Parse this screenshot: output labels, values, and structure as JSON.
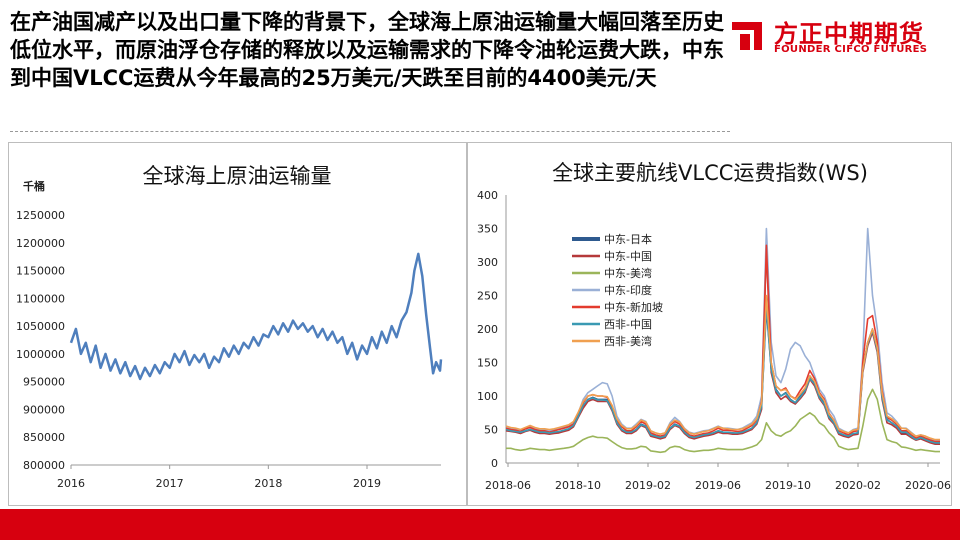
{
  "slide": {
    "headline": "在产油国减产以及出口量下降的背景下，全球海上原油运输量大幅回落至历史低位水平，而原油浮仓存储的释放以及运输需求的下降令油轮运费大跌，中东到中国VLCC运费从今年最高的25万美元/天跌至目前的4400美元/天"
  },
  "logo": {
    "name": "方正中期期货",
    "english": "FOUNDER CIFCO FUTURES",
    "color": "#d7000f"
  },
  "colors": {
    "accent": "#d7000f"
  },
  "chart_data": [
    {
      "type": "line",
      "title": "全球海上原油运输量",
      "ylabel": "千桶",
      "xlabel": "",
      "ylim": [
        800000,
        1250000
      ],
      "yticks": [
        "1250000",
        "1200000",
        "1150000",
        "1100000",
        "1050000",
        "1000000",
        "950000",
        "900000",
        "850000",
        "800000"
      ],
      "xticks": [
        "2016",
        "2017",
        "2018",
        "2019"
      ],
      "xrange": [
        2016.0,
        2019.75
      ],
      "grid": false,
      "series": [
        {
          "color": "#4f7fbd",
          "points": [
            [
              2016.0,
              1020000
            ],
            [
              2016.05,
              1045000
            ],
            [
              2016.1,
              1000000
            ],
            [
              2016.15,
              1020000
            ],
            [
              2016.2,
              985000
            ],
            [
              2016.25,
              1015000
            ],
            [
              2016.3,
              975000
            ],
            [
              2016.35,
              1000000
            ],
            [
              2016.4,
              970000
            ],
            [
              2016.45,
              990000
            ],
            [
              2016.5,
              965000
            ],
            [
              2016.55,
              985000
            ],
            [
              2016.6,
              960000
            ],
            [
              2016.65,
              978000
            ],
            [
              2016.7,
              955000
            ],
            [
              2016.75,
              975000
            ],
            [
              2016.8,
              960000
            ],
            [
              2016.85,
              980000
            ],
            [
              2016.9,
              965000
            ],
            [
              2016.95,
              985000
            ],
            [
              2017.0,
              975000
            ],
            [
              2017.05,
              1000000
            ],
            [
              2017.1,
              985000
            ],
            [
              2017.15,
              1005000
            ],
            [
              2017.2,
              980000
            ],
            [
              2017.25,
              998000
            ],
            [
              2017.3,
              985000
            ],
            [
              2017.35,
              1000000
            ],
            [
              2017.4,
              975000
            ],
            [
              2017.45,
              995000
            ],
            [
              2017.5,
              985000
            ],
            [
              2017.55,
              1010000
            ],
            [
              2017.6,
              995000
            ],
            [
              2017.65,
              1015000
            ],
            [
              2017.7,
              1000000
            ],
            [
              2017.75,
              1020000
            ],
            [
              2017.8,
              1010000
            ],
            [
              2017.85,
              1030000
            ],
            [
              2017.9,
              1015000
            ],
            [
              2017.95,
              1035000
            ],
            [
              2018.0,
              1030000
            ],
            [
              2018.05,
              1050000
            ],
            [
              2018.1,
              1035000
            ],
            [
              2018.15,
              1055000
            ],
            [
              2018.2,
              1040000
            ],
            [
              2018.25,
              1060000
            ],
            [
              2018.3,
              1045000
            ],
            [
              2018.35,
              1055000
            ],
            [
              2018.4,
              1040000
            ],
            [
              2018.45,
              1050000
            ],
            [
              2018.5,
              1030000
            ],
            [
              2018.55,
              1045000
            ],
            [
              2018.6,
              1025000
            ],
            [
              2018.65,
              1040000
            ],
            [
              2018.7,
              1020000
            ],
            [
              2018.75,
              1030000
            ],
            [
              2018.8,
              1000000
            ],
            [
              2018.85,
              1020000
            ],
            [
              2018.9,
              990000
            ],
            [
              2018.95,
              1015000
            ],
            [
              2019.0,
              1000000
            ],
            [
              2019.05,
              1030000
            ],
            [
              2019.1,
              1010000
            ],
            [
              2019.15,
              1040000
            ],
            [
              2019.2,
              1020000
            ],
            [
              2019.25,
              1050000
            ],
            [
              2019.3,
              1030000
            ],
            [
              2019.35,
              1060000
            ],
            [
              2019.4,
              1075000
            ],
            [
              2019.45,
              1110000
            ],
            [
              2019.48,
              1150000
            ],
            [
              2019.52,
              1180000
            ],
            [
              2019.56,
              1140000
            ],
            [
              2019.6,
              1070000
            ],
            [
              2019.64,
              1010000
            ],
            [
              2019.67,
              965000
            ],
            [
              2019.7,
              985000
            ],
            [
              2019.74,
              970000
            ],
            [
              2019.75,
              990000
            ]
          ]
        }
      ]
    },
    {
      "type": "line",
      "title": "全球主要航线VLCC运费指数(WS)",
      "ylabel": "",
      "xlabel": "",
      "ylim": [
        0,
        400
      ],
      "yticks": [
        "400",
        "350",
        "300",
        "250",
        "200",
        "150",
        "100",
        "50",
        "0"
      ],
      "xticks": [
        "2018-06",
        "2018-10",
        "2019-02",
        "2019-06",
        "2019-10",
        "2020-02",
        "2020-06"
      ],
      "grid": false,
      "legend": "top-left",
      "series": [
        {
          "name": "中东-日本",
          "color": "#2e5a8f",
          "values": [
            50,
            48,
            47,
            45,
            48,
            50,
            47,
            45,
            45,
            44,
            45,
            46,
            48,
            50,
            55,
            70,
            85,
            95,
            98,
            95,
            95,
            95,
            80,
            60,
            50,
            45,
            45,
            50,
            58,
            55,
            42,
            40,
            38,
            40,
            52,
            58,
            55,
            45,
            40,
            38,
            40,
            42,
            43,
            45,
            48,
            46,
            45,
            45,
            44,
            45,
            48,
            52,
            60,
            85,
            230,
            140,
            110,
            100,
            105,
            95,
            90,
            100,
            110,
            130,
            120,
            100,
            90,
            70,
            60,
            45,
            42,
            40,
            44,
            45,
            140,
            180,
            200,
            170,
            100,
            65,
            60,
            55,
            45,
            45,
            40,
            35,
            38,
            35,
            32,
            30,
            30
          ]
        },
        {
          "name": "中东-中国",
          "color": "#b5393a",
          "values": [
            48,
            47,
            46,
            44,
            47,
            49,
            46,
            44,
            44,
            43,
            44,
            45,
            47,
            49,
            54,
            68,
            82,
            92,
            95,
            92,
            92,
            92,
            78,
            58,
            48,
            44,
            44,
            48,
            56,
            53,
            40,
            38,
            36,
            38,
            50,
            56,
            53,
            44,
            38,
            36,
            38,
            40,
            41,
            43,
            46,
            44,
            44,
            43,
            43,
            44,
            47,
            50,
            58,
            80,
            320,
            135,
            105,
            95,
            100,
            92,
            88,
            96,
            105,
            125,
            115,
            96,
            86,
            66,
            58,
            43,
            40,
            38,
            42,
            43,
            135,
            175,
            195,
            165,
            95,
            60,
            57,
            52,
            43,
            43,
            38,
            34,
            36,
            33,
            30,
            28,
            28
          ]
        },
        {
          "name": "中东-美湾",
          "color": "#9bb55a",
          "values": [
            22,
            22,
            20,
            19,
            20,
            22,
            21,
            20,
            20,
            19,
            20,
            21,
            22,
            23,
            25,
            30,
            35,
            38,
            40,
            38,
            38,
            37,
            32,
            27,
            23,
            21,
            21,
            22,
            25,
            24,
            18,
            17,
            16,
            17,
            23,
            25,
            24,
            20,
            18,
            17,
            18,
            19,
            19,
            20,
            22,
            21,
            20,
            20,
            20,
            20,
            22,
            24,
            27,
            35,
            60,
            48,
            42,
            40,
            45,
            48,
            55,
            65,
            70,
            75,
            70,
            60,
            55,
            45,
            38,
            25,
            22,
            20,
            21,
            22,
            55,
            95,
            110,
            95,
            60,
            35,
            32,
            30,
            24,
            23,
            21,
            19,
            20,
            19,
            18,
            17,
            17
          ]
        },
        {
          "name": "中东-印度",
          "color": "#9ab0d6",
          "values": [
            55,
            52,
            50,
            48,
            52,
            55,
            52,
            50,
            50,
            48,
            50,
            52,
            54,
            56,
            60,
            75,
            95,
            105,
            110,
            115,
            120,
            118,
            100,
            70,
            58,
            52,
            52,
            58,
            65,
            62,
            48,
            45,
            43,
            45,
            60,
            68,
            62,
            52,
            46,
            44,
            46,
            48,
            49,
            52,
            55,
            52,
            52,
            51,
            50,
            52,
            56,
            60,
            70,
            100,
            350,
            180,
            130,
            120,
            140,
            170,
            180,
            175,
            160,
            150,
            130,
            110,
            100,
            80,
            70,
            52,
            48,
            45,
            50,
            52,
            160,
            350,
            250,
            200,
            120,
            75,
            70,
            62,
            52,
            52,
            46,
            40,
            42,
            40,
            36,
            34,
            34
          ]
        },
        {
          "name": "中东-新加坡",
          "color": "#e33b2e",
          "values": [
            52,
            50,
            49,
            47,
            51,
            53,
            50,
            48,
            48,
            46,
            48,
            50,
            52,
            54,
            58,
            72,
            90,
            100,
            102,
            100,
            100,
            98,
            85,
            64,
            54,
            48,
            48,
            54,
            62,
            58,
            45,
            42,
            40,
            42,
            56,
            62,
            58,
            48,
            42,
            40,
            42,
            44,
            45,
            48,
            52,
            49,
            49,
            48,
            47,
            48,
            52,
            56,
            64,
            92,
            325,
            150,
            115,
            108,
            112,
            100,
            96,
            108,
            118,
            138,
            126,
            105,
            95,
            74,
            64,
            48,
            45,
            42,
            47,
            48,
            150,
            215,
            220,
            180,
            108,
            68,
            64,
            58,
            48,
            48,
            42,
            37,
            40,
            37,
            34,
            32,
            32
          ]
        },
        {
          "name": "西非-中国",
          "color": "#3a9ab3",
          "values": [
            50,
            48,
            47,
            46,
            48,
            50,
            48,
            46,
            46,
            45,
            46,
            47,
            49,
            51,
            56,
            70,
            86,
            95,
            97,
            94,
            94,
            93,
            80,
            60,
            50,
            46,
            46,
            50,
            57,
            55,
            42,
            40,
            38,
            40,
            52,
            57,
            55,
            46,
            40,
            38,
            40,
            42,
            43,
            45,
            48,
            46,
            46,
            45,
            45,
            46,
            49,
            52,
            60,
            84,
            235,
            140,
            108,
            100,
            104,
            94,
            90,
            98,
            108,
            126,
            118,
            98,
            88,
            68,
            60,
            45,
            42,
            40,
            44,
            45,
            138,
            178,
            198,
            168,
            98,
            64,
            60,
            55,
            46,
            46,
            40,
            35,
            38,
            35,
            32,
            30,
            30
          ]
        },
        {
          "name": "西非-美湾",
          "color": "#f0a050",
          "values": [
            55,
            53,
            52,
            50,
            53,
            56,
            53,
            51,
            51,
            50,
            51,
            53,
            55,
            57,
            62,
            76,
            92,
            100,
            102,
            100,
            100,
            99,
            86,
            66,
            56,
            51,
            51,
            56,
            64,
            61,
            48,
            45,
            43,
            45,
            58,
            64,
            61,
            51,
            45,
            43,
            45,
            47,
            48,
            51,
            54,
            52,
            51,
            50,
            50,
            51,
            54,
            58,
            66,
            90,
            250,
            150,
            115,
            108,
            110,
            100,
            95,
            103,
            112,
            130,
            122,
            103,
            93,
            73,
            64,
            50,
            47,
            45,
            49,
            50,
            140,
            180,
            200,
            172,
            104,
            70,
            66,
            60,
            52,
            51,
            45,
            40,
            42,
            40,
            37,
            35,
            35
          ]
        }
      ]
    }
  ]
}
